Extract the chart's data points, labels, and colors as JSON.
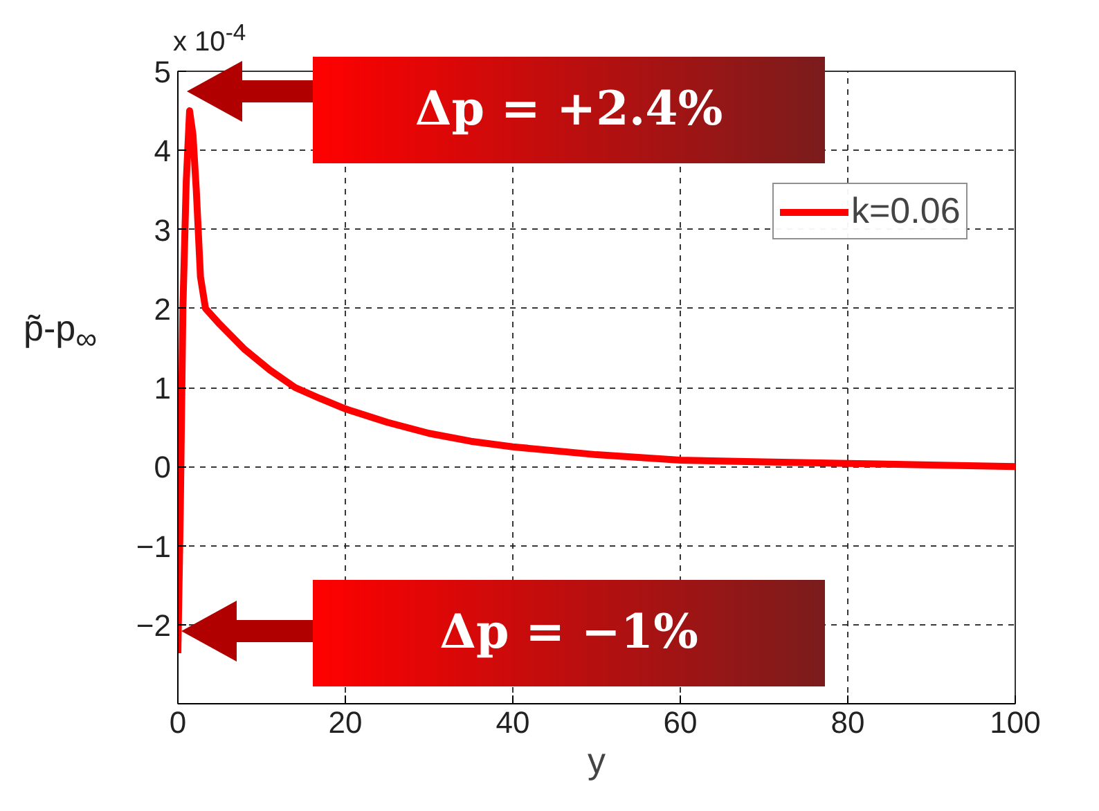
{
  "chart_data": {
    "type": "line",
    "xlabel": "y",
    "ylabel": "p̃-p$_{∞}$",
    "annotations": [
      "x 10$^{-4}$",
      "Δp = +2.4%",
      "Δp = −1%"
    ],
    "series": [
      {
        "name": "k=0.06",
        "color": "#ff0000",
        "x": [
          0,
          0.3,
          0.6,
          1.0,
          1.4,
          1.8,
          2.2,
          2.7,
          3.3,
          5,
          8,
          11,
          14,
          17,
          20,
          25,
          30,
          35,
          40,
          50,
          60,
          70,
          80,
          90,
          100
        ],
        "values": [
          -2.36,
          -0.5,
          2.0,
          3.6,
          4.5,
          4.2,
          3.5,
          2.4,
          2.0,
          1.8,
          1.48,
          1.22,
          1.0,
          0.86,
          0.73,
          0.56,
          0.42,
          0.32,
          0.25,
          0.15,
          0.08,
          0.06,
          0.04,
          0.02,
          0.0
        ]
      }
    ],
    "xlim": [
      0,
      100
    ],
    "xticks": [
      0,
      20,
      40,
      60,
      80,
      100
    ],
    "ylim": [
      -3,
      5
    ],
    "yticks": [
      -2,
      -1,
      0,
      1,
      2,
      3,
      4,
      5
    ],
    "grid": true,
    "legend": "top right",
    "marker": "none",
    "line_style": "solid"
  }
}
